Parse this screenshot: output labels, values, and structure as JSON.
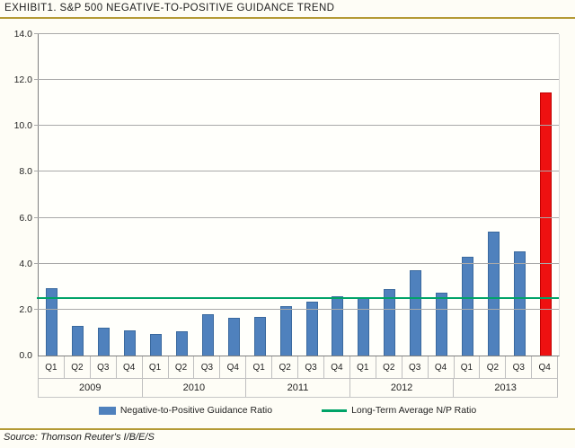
{
  "title": "EXHIBIT1. S&P 500 NEGATIVE-TO-POSITIVE GUIDANCE TREND",
  "source": "Source: Thomson Reuter's I/B/E/S",
  "colors": {
    "bar": "#4f81bd",
    "bar_highlight": "#ee1111",
    "average_line": "#00a368",
    "rule": "#b49a35",
    "gridline": "#a9a9a9"
  },
  "chart_data": {
    "type": "bar",
    "title": "S&P 500 Negative-to-Positive Guidance Trend",
    "categories": [
      "Q1",
      "Q2",
      "Q3",
      "Q4",
      "Q1",
      "Q2",
      "Q3",
      "Q4",
      "Q1",
      "Q2",
      "Q3",
      "Q4",
      "Q1",
      "Q2",
      "Q3",
      "Q4",
      "Q1",
      "Q2",
      "Q3",
      "Q4"
    ],
    "year_groups": [
      {
        "label": "2009",
        "span": 4
      },
      {
        "label": "2010",
        "span": 4
      },
      {
        "label": "2011",
        "span": 4
      },
      {
        "label": "2012",
        "span": 4
      },
      {
        "label": "2013",
        "span": 4
      }
    ],
    "values": [
      2.95,
      1.3,
      1.2,
      1.1,
      0.95,
      1.05,
      1.8,
      1.65,
      1.7,
      2.15,
      2.35,
      2.6,
      2.5,
      2.9,
      3.7,
      2.75,
      4.3,
      5.4,
      4.55,
      11.45
    ],
    "highlight_index": 19,
    "average_line": {
      "value": 2.45,
      "label": "Long-Term Average N/P Ratio"
    },
    "legend": [
      {
        "label": "Negative-to-Positive Guidance Ratio",
        "type": "bar"
      },
      {
        "label": "Long-Term Average N/P Ratio",
        "type": "line"
      }
    ],
    "xlabel": "",
    "ylabel": "",
    "ylim": [
      0,
      14
    ],
    "ytick_step": 2,
    "yticks": [
      "0.0",
      "2.0",
      "4.0",
      "6.0",
      "8.0",
      "10.0",
      "12.0",
      "14.0"
    ],
    "grid": true,
    "legend_position": "bottom"
  }
}
